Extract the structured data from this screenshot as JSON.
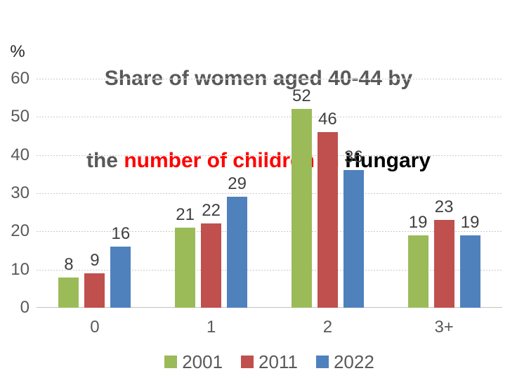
{
  "title": {
    "line1": "Share of women aged 40-44 by",
    "line2_prefix": "the ",
    "line2_highlight": "number of children",
    "line2_suffix": " in Hungary",
    "highlight_color": "#ff0000"
  },
  "axis": {
    "unit_label": "%",
    "ticks": [
      0,
      10,
      20,
      30,
      40,
      50,
      60
    ],
    "max": 60
  },
  "chart_data": {
    "type": "bar",
    "title": "Share of women aged 40-44 by the number of children in Hungary",
    "categories": [
      "0",
      "1",
      "2",
      "3+"
    ],
    "series": [
      {
        "name": "2001",
        "color": "#9BBB59",
        "values": [
          8,
          21,
          52,
          19
        ]
      },
      {
        "name": "2011",
        "color": "#C0504D",
        "values": [
          9,
          22,
          46,
          23
        ]
      },
      {
        "name": "2022",
        "color": "#4F81BD",
        "values": [
          16,
          29,
          36,
          19
        ]
      }
    ],
    "xlabel": "",
    "ylabel": "%",
    "ylim": [
      0,
      60
    ],
    "grid": true,
    "legend_position": "bottom"
  },
  "colors": {
    "grid": "#c9c9c9",
    "axis_text": "#595959",
    "data_label": "#404040"
  }
}
